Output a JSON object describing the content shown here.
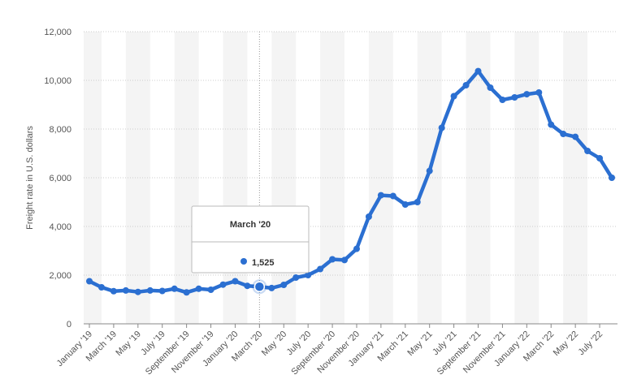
{
  "chart_data": {
    "type": "line",
    "y_label": "Freight rate in U.S. dollars",
    "categories": [
      "January '19",
      null,
      "March '19",
      null,
      "May '19",
      null,
      "July '19",
      null,
      "September '19",
      null,
      "November '19",
      null,
      "January '20",
      null,
      "March '20",
      null,
      "May '20",
      null,
      "July '20",
      null,
      "September '20",
      null,
      "November '20",
      null,
      "January '21",
      null,
      "March '21",
      null,
      "May '21",
      null,
      "July '21",
      null,
      "September '21",
      null,
      "November '21",
      null,
      "January '22",
      null,
      "March '22",
      null,
      "May '22",
      null,
      "July '22",
      null
    ],
    "series": [
      {
        "color": "#2b6fd1",
        "values": [
          1750,
          1500,
          1340,
          1370,
          1310,
          1370,
          1350,
          1440,
          1290,
          1440,
          1400,
          1610,
          1750,
          1560,
          1525,
          1470,
          1600,
          1900,
          2000,
          2250,
          2650,
          2620,
          3080,
          4400,
          5280,
          5250,
          4900,
          5000,
          6280,
          8050,
          9350,
          9800,
          10380,
          9700,
          9200,
          9300,
          9430,
          9500,
          8180,
          7800,
          7680,
          7100,
          6800,
          6000
        ]
      }
    ],
    "ylim": [
      0,
      12000
    ],
    "yticks": [
      0,
      {
        "value": 2000,
        "label": "2,000"
      },
      {
        "value": 4000,
        "label": "4,000"
      },
      {
        "value": 6000,
        "label": "6,000"
      },
      {
        "value": 8000,
        "label": "8,000"
      },
      {
        "value": 10000,
        "label": "10,000"
      },
      {
        "value": 12000,
        "label": "12,000"
      }
    ],
    "grid": true,
    "tooltip": {
      "title": "March '20",
      "label": "1,525"
    }
  }
}
